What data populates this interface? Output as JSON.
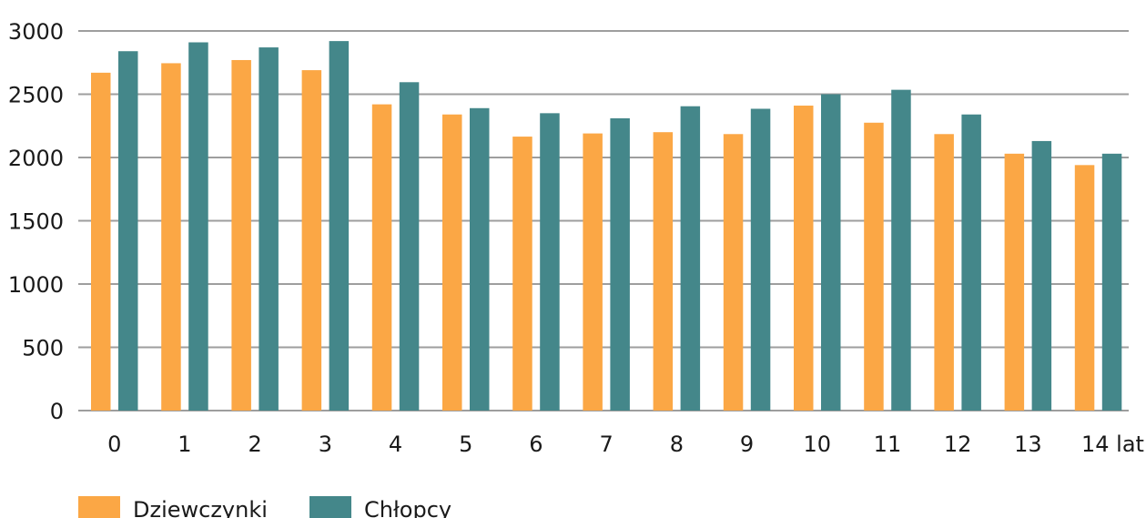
{
  "chart_data": {
    "type": "bar",
    "categories": [
      "0",
      "1",
      "2",
      "3",
      "4",
      "5",
      "6",
      "7",
      "8",
      "9",
      "10",
      "11",
      "12",
      "13",
      "14 lat"
    ],
    "series": [
      {
        "name": "Dziewczynki",
        "color": "#FBA745",
        "values": [
          2670,
          2745,
          2770,
          2690,
          2420,
          2340,
          2165,
          2190,
          2200,
          2185,
          2410,
          2275,
          2185,
          2030,
          1940
        ]
      },
      {
        "name": "Chłopcy",
        "color": "#44878A",
        "values": [
          2840,
          2910,
          2870,
          2920,
          2595,
          2390,
          2350,
          2310,
          2405,
          2385,
          2500,
          2535,
          2340,
          2130,
          2030
        ]
      }
    ],
    "yticks": [
      "0",
      "500",
      "1000",
      "1500",
      "2000",
      "2500",
      "3000"
    ],
    "ylim": [
      0,
      3000
    ],
    "grid": true,
    "legend": "bottom-left",
    "gridline_color": "#9E9E9E"
  }
}
